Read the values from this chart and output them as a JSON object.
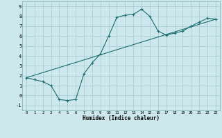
{
  "xlabel": "Humidex (Indice chaleur)",
  "ylabel": "",
  "xlim": [
    -0.5,
    23.5
  ],
  "ylim": [
    -1.5,
    9.5
  ],
  "xticks": [
    0,
    1,
    2,
    3,
    4,
    5,
    6,
    7,
    8,
    9,
    10,
    11,
    12,
    13,
    14,
    15,
    16,
    17,
    18,
    19,
    20,
    21,
    22,
    23
  ],
  "yticks": [
    -1,
    0,
    1,
    2,
    3,
    4,
    5,
    6,
    7,
    8,
    9
  ],
  "bg_color": "#cce8ec",
  "grid_color": "#aacdd4",
  "line_color": "#1a6b6e",
  "line1_x": [
    0,
    1,
    2,
    3,
    4,
    5,
    6,
    7,
    8,
    9,
    10,
    11,
    12,
    13,
    14,
    15,
    16,
    17,
    18,
    19,
    20,
    21,
    22,
    23
  ],
  "line1_y": [
    1.8,
    1.6,
    1.4,
    1.0,
    -0.4,
    -0.5,
    -0.4,
    2.2,
    3.3,
    4.2,
    6.0,
    7.9,
    8.1,
    8.2,
    8.7,
    8.0,
    6.5,
    6.1,
    6.3,
    6.5,
    7.0,
    7.4,
    7.8,
    7.7
  ],
  "line2_x": [
    0,
    23
  ],
  "line2_y": [
    1.8,
    7.7
  ],
  "figsize": [
    3.2,
    2.0
  ],
  "dpi": 100
}
